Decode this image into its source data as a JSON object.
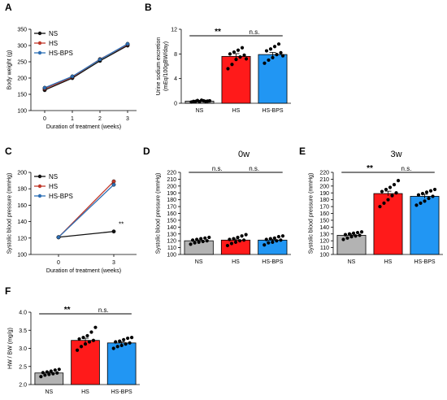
{
  "colors": {
    "NS": "#111111",
    "HS": "#c0392b",
    "HS-BPS": "#2d6fb5",
    "bar_NS": "#b3b3b3",
    "bar_HS": "#ff1a1a",
    "bar_HS-BPS": "#2196f3"
  },
  "chart_data": [
    {
      "panel": "A",
      "type": "line",
      "x": [
        0,
        1,
        2,
        3
      ],
      "xticks": [
        "0",
        "1",
        "2",
        "3"
      ],
      "xlabel": "Duration of treatment (weeks)",
      "ylabel": "Body weight (g)",
      "ylim": [
        100,
        350
      ],
      "yticks": [
        100,
        150,
        200,
        250,
        300,
        350
      ],
      "legend": "top-left",
      "series": [
        {
          "name": "NS",
          "values": [
            163,
            200,
            253,
            300
          ]
        },
        {
          "name": "HS",
          "values": [
            167,
            203,
            258,
            303
          ]
        },
        {
          "name": "HS-BPS",
          "values": [
            170,
            205,
            257,
            305
          ]
        }
      ]
    },
    {
      "panel": "B",
      "type": "bar",
      "categories": [
        "NS",
        "HS",
        "HS-BPS"
      ],
      "values": [
        0.35,
        7.6,
        7.9
      ],
      "errors": [
        0.1,
        0.45,
        0.35
      ],
      "ylabel": "Urine sodium excretion (mEq/100gBW/day)",
      "ylim": [
        0,
        12
      ],
      "yticks": [
        0,
        4,
        8,
        12
      ],
      "points": [
        [
          0.2,
          0.3,
          0.25,
          0.4,
          0.35,
          0.3,
          0.45,
          0.5,
          0.3,
          0.4
        ],
        [
          5.6,
          6.3,
          7.1,
          7.5,
          7.8,
          8.0,
          8.3,
          8.6,
          9.0,
          7.2
        ],
        [
          6.5,
          7.0,
          7.4,
          7.9,
          8.2,
          8.5,
          8.8,
          9.2,
          9.6,
          7.7
        ]
      ],
      "comparisons": [
        {
          "a": 0,
          "b": 1,
          "label": "**"
        },
        {
          "a": 1,
          "b": 2,
          "label": "n.s."
        }
      ]
    },
    {
      "panel": "C",
      "type": "line",
      "x": [
        0,
        3
      ],
      "xticks": [
        "0",
        "3"
      ],
      "xlabel": "Duration of treatment (weeks)",
      "ylabel": "Systolic blood pressure (mmHg)",
      "ylim": [
        100,
        200
      ],
      "yticks": [
        100,
        120,
        140,
        160,
        180,
        200
      ],
      "legend": "top-left",
      "annotation": "**",
      "series": [
        {
          "name": "NS",
          "values": [
            121,
            128
          ]
        },
        {
          "name": "HS",
          "values": [
            121,
            189
          ]
        },
        {
          "name": "HS-BPS",
          "values": [
            121,
            185
          ]
        }
      ]
    },
    {
      "panel": "D",
      "type": "bar",
      "subtitle": "0w",
      "categories": [
        "NS",
        "HS",
        "HS-BPS"
      ],
      "values": [
        120,
        121,
        121
      ],
      "errors": [
        1.2,
        1.5,
        1.2
      ],
      "ylabel": "Systolic blood pressure (mmHg)",
      "ylim": [
        100,
        220
      ],
      "yticks": [
        100,
        110,
        120,
        130,
        140,
        150,
        160,
        170,
        180,
        190,
        200,
        210,
        220
      ],
      "points": [
        [
          115,
          117,
          118,
          119,
          120,
          121,
          122,
          123,
          124,
          125
        ],
        [
          113,
          116,
          118,
          120,
          121,
          122,
          123,
          125,
          127,
          129
        ],
        [
          114,
          117,
          118,
          120,
          121,
          122,
          123,
          124,
          126,
          127
        ]
      ],
      "comparisons": [
        {
          "a": 0,
          "b": 1,
          "label": "n.s."
        },
        {
          "a": 1,
          "b": 2,
          "label": "n.s."
        }
      ]
    },
    {
      "panel": "E",
      "type": "bar",
      "subtitle": "3w",
      "categories": [
        "NS",
        "HS",
        "HS-BPS"
      ],
      "values": [
        128,
        189,
        185
      ],
      "errors": [
        2,
        3.5,
        3
      ],
      "ylabel": "Systolic blood pressure (mmHg)",
      "ylim": [
        100,
        220
      ],
      "yticks": [
        100,
        110,
        120,
        130,
        140,
        150,
        160,
        170,
        180,
        190,
        200,
        210,
        220
      ],
      "points": [
        [
          122,
          124,
          126,
          127,
          128,
          129,
          130,
          131,
          132,
          133
        ],
        [
          170,
          175,
          180,
          186,
          190,
          192,
          195,
          198,
          202,
          208
        ],
        [
          172,
          175,
          178,
          182,
          185,
          187,
          189,
          191,
          193,
          195
        ]
      ],
      "comparisons": [
        {
          "a": 0,
          "b": 1,
          "label": "**"
        },
        {
          "a": 1,
          "b": 2,
          "label": "n.s."
        }
      ]
    },
    {
      "panel": "F",
      "type": "bar",
      "categories": [
        "NS",
        "HS",
        "HS-BPS"
      ],
      "values": [
        2.32,
        3.22,
        3.15
      ],
      "errors": [
        0.03,
        0.06,
        0.03
      ],
      "ylabel": "HW / BW (mg/g)",
      "ylim": [
        2.0,
        4.0
      ],
      "yticks": [
        2.0,
        2.5,
        3.0,
        3.5,
        4.0
      ],
      "points": [
        [
          2.22,
          2.26,
          2.28,
          2.3,
          2.32,
          2.33,
          2.35,
          2.37,
          2.4,
          2.42
        ],
        [
          2.95,
          3.05,
          3.12,
          3.18,
          3.22,
          3.26,
          3.3,
          3.35,
          3.45,
          3.58
        ],
        [
          3.0,
          3.05,
          3.08,
          3.12,
          3.15,
          3.18,
          3.2,
          3.24,
          3.28,
          3.3
        ]
      ],
      "comparisons": [
        {
          "a": 0,
          "b": 1,
          "label": "**"
        },
        {
          "a": 1,
          "b": 2,
          "label": "n.s."
        }
      ]
    }
  ]
}
